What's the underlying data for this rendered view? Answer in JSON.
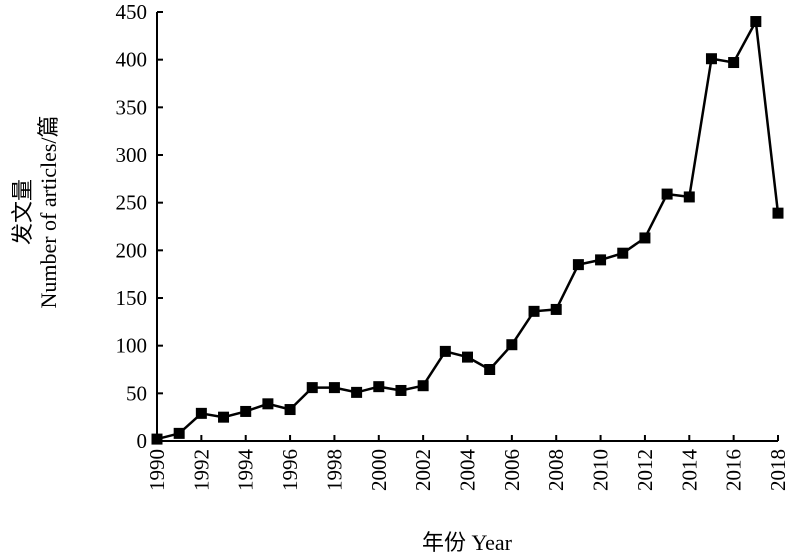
{
  "chart_data": {
    "type": "line",
    "xlabel": "年份 Year",
    "ylabel_cn": "发文量",
    "ylabel_en": "Number of articles/篇",
    "xlim": [
      1990,
      2018
    ],
    "ylim": [
      0,
      450
    ],
    "x_ticks": [
      "1990",
      "1992",
      "1994",
      "1996",
      "1998",
      "2000",
      "2002",
      "2004",
      "2006",
      "2008",
      "2010",
      "2012",
      "2014",
      "2016",
      "2018"
    ],
    "y_ticks": [
      "0",
      "50",
      "100",
      "150",
      "200",
      "250",
      "300",
      "350",
      "400",
      "450"
    ],
    "grid": false,
    "marker": "square",
    "x": [
      1990,
      1991,
      1992,
      1993,
      1994,
      1995,
      1996,
      1997,
      1998,
      1999,
      2000,
      2001,
      2002,
      2003,
      2004,
      2005,
      2006,
      2007,
      2008,
      2009,
      2010,
      2011,
      2012,
      2013,
      2014,
      2015,
      2016,
      2017,
      2018
    ],
    "values": [
      2,
      8,
      29,
      25,
      31,
      39,
      33,
      56,
      56,
      51,
      57,
      53,
      58,
      94,
      88,
      75,
      101,
      136,
      138,
      185,
      190,
      197,
      213,
      259,
      256,
      401,
      397,
      440,
      239
    ]
  }
}
